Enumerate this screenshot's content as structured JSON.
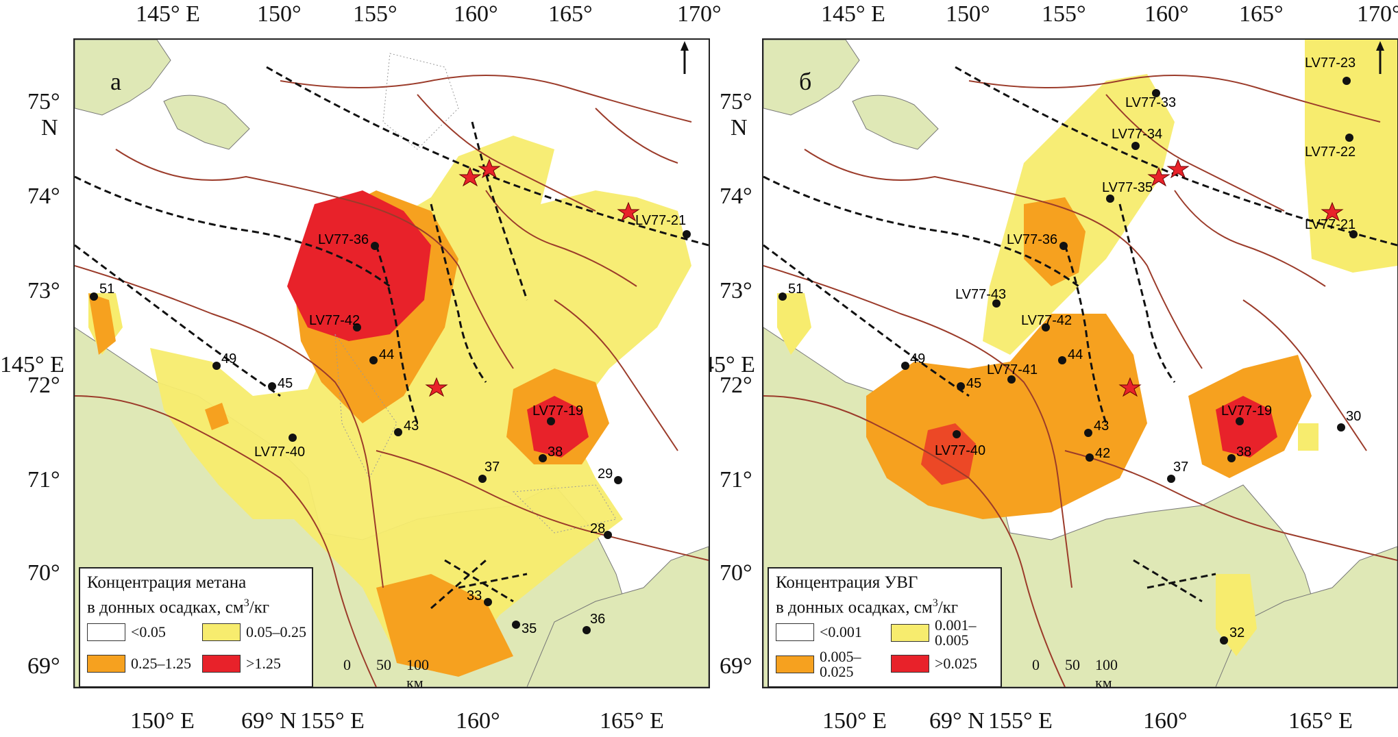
{
  "axes": {
    "top_labels": [
      "145° E",
      "150°",
      "155°",
      "160°",
      "165°",
      "170°"
    ],
    "left_labels": [
      "75°",
      "N",
      "74°",
      "73°",
      "145° E",
      "72°",
      "71°",
      "70°",
      "69°"
    ],
    "bottom_labels_a": [
      "150° E",
      "69° N",
      "155° E",
      "160°",
      "165° E"
    ],
    "bottom_labels_b": [
      "150° E",
      "69° N",
      "155° E",
      "160°",
      "165° E"
    ]
  },
  "panel_a": {
    "letter": "а",
    "legend": {
      "title_line1": "Концентрация метана",
      "title_line2": "в донных осадках, см",
      "title_sup": "3",
      "title_tail": "/кг",
      "items": [
        {
          "label": "<0.05",
          "color": "#ffffff"
        },
        {
          "label": "0.05–0.25",
          "color": "#f7ec6e"
        },
        {
          "label": "0.25–1.25",
          "color": "#f6a11f"
        },
        {
          "label": ">1.25",
          "color": "#e8222a"
        }
      ]
    },
    "stations": [
      "LV77-36",
      "LV77-42",
      "44",
      "43",
      "45",
      "49",
      "51",
      "LV77-40",
      "37",
      "38",
      "29",
      "28",
      "33",
      "35",
      "36",
      "LV77-19",
      "LV77-21"
    ]
  },
  "panel_b": {
    "letter": "б",
    "legend": {
      "title_line1": "Концентрация УВГ",
      "title_line2": "в донных осадках, см",
      "title_sup": "3",
      "title_tail": "/кг",
      "items": [
        {
          "label": "<0.001",
          "color": "#ffffff"
        },
        {
          "label": "0.001–\n0.005",
          "color": "#f7ec6e"
        },
        {
          "label": "0.005–\n0.025",
          "color": "#f6a11f"
        },
        {
          "label": ">0.025",
          "color": "#e8222a"
        }
      ]
    },
    "stations": [
      "LV77-23",
      "LV77-22",
      "LV77-33",
      "LV77-34",
      "LV77-35",
      "LV77-36",
      "LV77-43",
      "LV77-42",
      "LV77-41",
      "44",
      "45",
      "49",
      "51",
      "LV77-40",
      "43",
      "42",
      "37",
      "38",
      "30",
      "32",
      "LV77-19",
      "LV77-21"
    ]
  },
  "scalebar": {
    "labels": [
      "0",
      "50",
      "100 км"
    ]
  },
  "colors": {
    "land": "#dfe8b6",
    "isobath": "#9b3b2a",
    "fault": "#111111",
    "yellow": "#f7ec6e",
    "orange": "#f6a11f",
    "red": "#e8222a"
  }
}
